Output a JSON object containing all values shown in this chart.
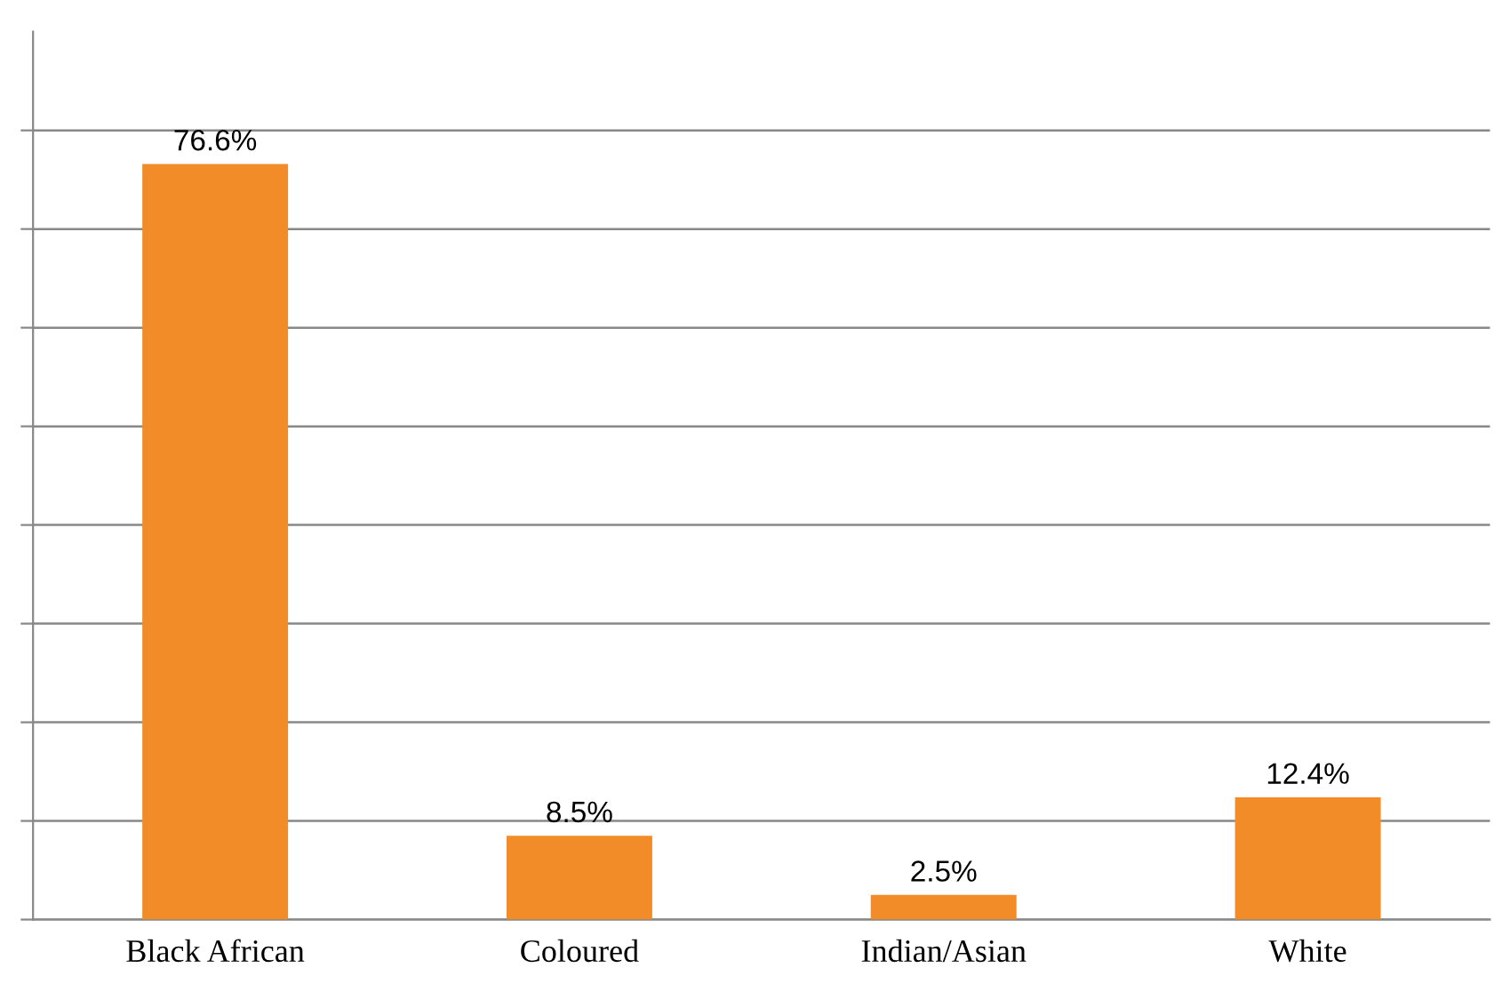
{
  "chart_data": {
    "type": "bar",
    "categories": [
      "Black African",
      "Coloured",
      "Indian/Asian",
      "White"
    ],
    "values": [
      76.6,
      8.5,
      2.5,
      12.4
    ],
    "color": "#f28c28",
    "value_labels": [
      "76.6%",
      "8.5%",
      "2.5%",
      "12.4%"
    ],
    "ylim": [
      0,
      90
    ],
    "yticks": [
      {
        "value": 0,
        "label": null
      },
      {
        "value": 10,
        "label": null
      },
      {
        "value": 20,
        "label": null
      },
      {
        "value": 30,
        "label": null
      },
      {
        "value": 40,
        "label": null
      },
      {
        "value": 50,
        "label": null
      },
      {
        "value": 60,
        "label": null
      },
      {
        "value": 70,
        "label": null
      },
      {
        "value": 80,
        "label": null
      }
    ],
    "grid": "y",
    "tick_labels": "x"
  }
}
